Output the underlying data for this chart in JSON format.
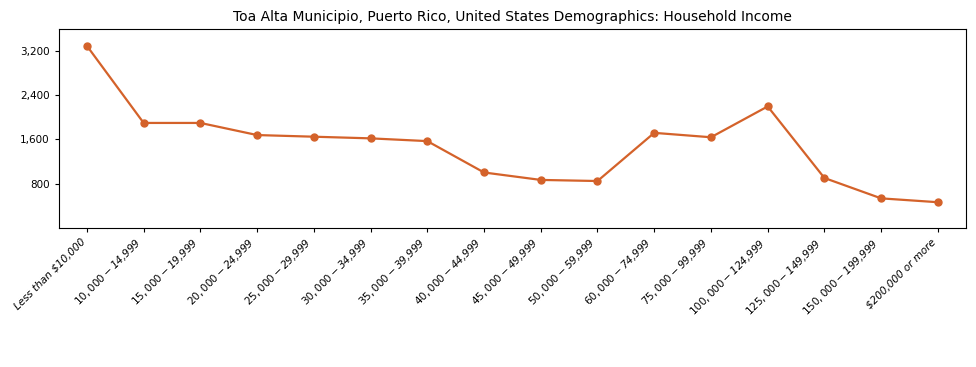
{
  "title": "Toa Alta Municipio, Puerto Rico, United States Demographics: Household Income",
  "categories": [
    "Less than $10,000",
    "$10,000 - $14,999",
    "$15,000 - $19,999",
    "$20,000 - $24,999",
    "$25,000 - $29,999",
    "$30,000 - $34,999",
    "$35,000 - $39,999",
    "$40,000 - $44,999",
    "$45,000 - $49,999",
    "$50,000 - $59,999",
    "$60,000 - $74,999",
    "$75,000 - $99,999",
    "$100,000 - $124,999",
    "$125,000 - $149,999",
    "$150,000 - $199,999",
    "$200,000 or more"
  ],
  "values": [
    3300,
    1900,
    1900,
    1680,
    1650,
    1620,
    1570,
    1000,
    865,
    845,
    1720,
    1640,
    2200,
    900,
    530,
    460
  ],
  "line_color": "#d4622a",
  "marker_color": "#d4622a",
  "marker_style": "o",
  "marker_size": 5,
  "line_width": 1.6,
  "ylim": [
    0,
    3600
  ],
  "yticks": [
    800,
    1600,
    2400,
    3200
  ],
  "title_fontsize": 10,
  "tick_fontsize": 7.5,
  "background_color": "#ffffff",
  "figsize": [
    9.76,
    3.67
  ],
  "dpi": 100
}
